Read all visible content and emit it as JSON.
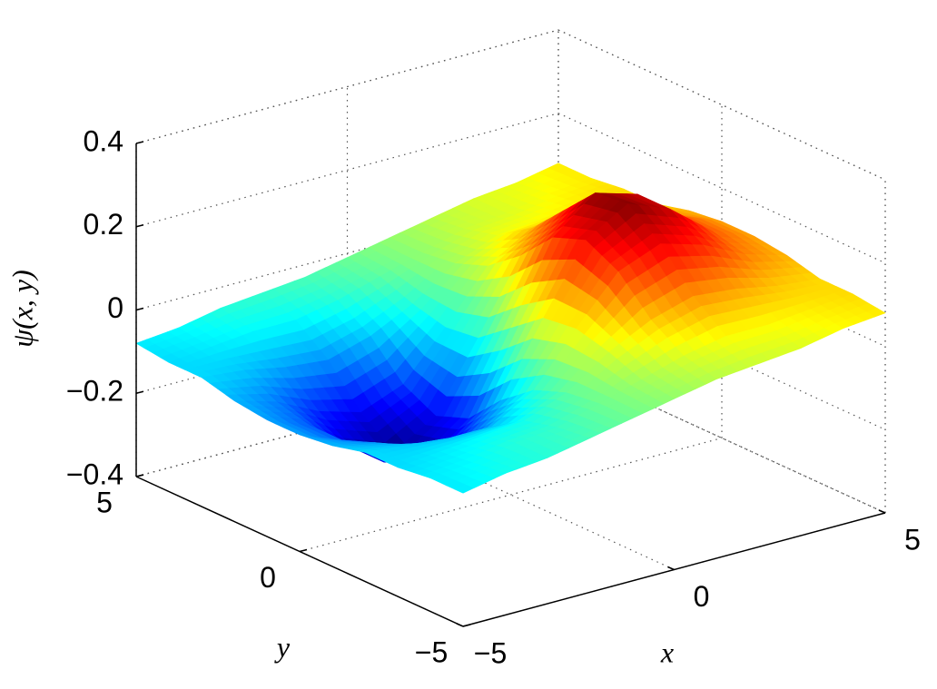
{
  "chart_data": {
    "type": "surface",
    "colormap": "jet",
    "xlabel": "x",
    "ylabel": "y",
    "zlabel": "ψ(x, y)",
    "x": [
      -5,
      -4,
      -3,
      -2,
      -1,
      0,
      1,
      2,
      3,
      4,
      5
    ],
    "y": [
      -5,
      -4,
      -3,
      -2,
      -1,
      0,
      1,
      2,
      3,
      4,
      5
    ],
    "z": [
      [
        -0.08,
        -0.06,
        -0.05,
        -0.03,
        -0.01,
        0.01,
        0.03,
        0.04,
        0.05,
        0.07,
        0.08
      ],
      [
        -0.08,
        -0.07,
        -0.05,
        -0.04,
        -0.01,
        0.02,
        0.05,
        0.07,
        0.07,
        0.08,
        0.09
      ],
      [
        -0.09,
        -0.08,
        -0.07,
        -0.06,
        -0.02,
        0.05,
        0.1,
        0.13,
        0.12,
        0.1,
        0.09
      ],
      [
        -0.09,
        -0.1,
        -0.11,
        -0.11,
        -0.05,
        0.07,
        0.18,
        0.22,
        0.19,
        0.14,
        0.11
      ],
      [
        -0.11,
        -0.13,
        -0.18,
        -0.19,
        -0.11,
        0.06,
        0.22,
        0.28,
        0.24,
        0.16,
        0.12
      ],
      [
        -0.12,
        -0.16,
        -0.24,
        -0.27,
        -0.19,
        0,
        0.19,
        0.27,
        0.24,
        0.16,
        0.12
      ],
      [
        -0.12,
        -0.16,
        -0.24,
        -0.28,
        -0.22,
        -0.06,
        0.11,
        0.19,
        0.18,
        0.13,
        0.11
      ],
      [
        -0.11,
        -0.14,
        -0.19,
        -0.22,
        -0.18,
        -0.07,
        0.05,
        0.11,
        0.11,
        0.1,
        0.09
      ],
      [
        -0.09,
        -0.1,
        -0.12,
        -0.13,
        -0.1,
        -0.05,
        0.02,
        0.06,
        0.07,
        0.08,
        0.09
      ],
      [
        -0.09,
        -0.08,
        -0.07,
        -0.07,
        -0.05,
        -0.02,
        0.01,
        0.04,
        0.05,
        0.07,
        0.08
      ],
      [
        -0.08,
        -0.07,
        -0.05,
        -0.04,
        -0.03,
        -0.01,
        0.01,
        0.03,
        0.05,
        0.06,
        0.08
      ]
    ],
    "xlim": [
      -5,
      5
    ],
    "ylim": [
      -5,
      5
    ],
    "zlim": [
      -0.4,
      0.4
    ],
    "xticks": [
      {
        "value": -5,
        "label": "−5"
      },
      0,
      5
    ],
    "yticks": [
      {
        "value": -5,
        "label": "−5"
      },
      0,
      5
    ],
    "zticks": [
      {
        "value": -0.4,
        "label": "−0.4"
      },
      {
        "value": -0.2,
        "label": "−0.2"
      },
      0,
      0.2,
      0.4
    ],
    "grid": true
  }
}
